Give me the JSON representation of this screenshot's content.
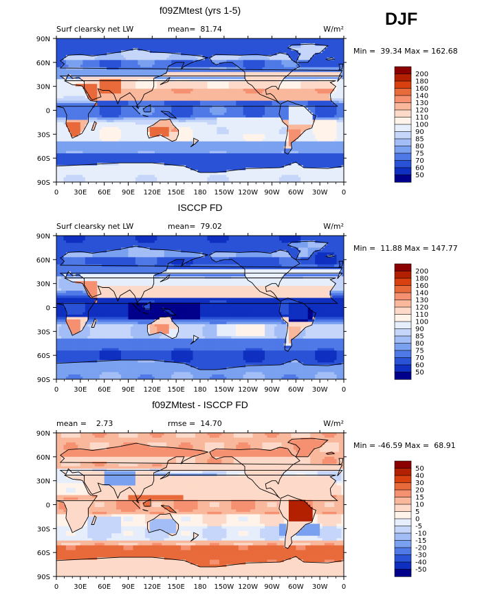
{
  "season": "DJF",
  "chart_data": [
    {
      "type": "heatmap",
      "title": "f09ZMtest (yrs 1-5)",
      "subtitle_left": "Surf clearsky net LW",
      "stat_text": "mean=  81.74",
      "units": "W/m²",
      "minmax_text": "Min =  39.34 Max = 162.68",
      "x_ticks": [
        "0",
        "30E",
        "60E",
        "90E",
        "120E",
        "150E",
        "180",
        "150W",
        "120W",
        "90W",
        "60W",
        "30W",
        "0"
      ],
      "y_ticks": [
        "90N",
        "60N",
        "30N",
        "0",
        "30S",
        "60S",
        "90S"
      ],
      "xlim": [
        0,
        360
      ],
      "ylim": [
        -90,
        90
      ],
      "colorbar_levels": [
        "200",
        "180",
        "160",
        "140",
        "130",
        "120",
        "110",
        "100",
        "90",
        "85",
        "80",
        "75",
        "70",
        "60",
        "50"
      ],
      "colorbar_colors": [
        "#8b0000",
        "#b22000",
        "#d84010",
        "#e86a3a",
        "#f59070",
        "#f9b89c",
        "#fcd9c8",
        "#fff3ea",
        "#e6eefc",
        "#c5d6fa",
        "#a3bdf6",
        "#7aa0f0",
        "#4f79e6",
        "#2a52d6",
        "#0e2fc0",
        "#00008b"
      ],
      "field_type": "base1"
    },
    {
      "type": "heatmap",
      "title": "ISCCP FD",
      "subtitle_left": "Surf clearsky net LW",
      "stat_text": "mean=  79.02",
      "units": "W/m²",
      "minmax_text": "Min =  11.88 Max = 147.77",
      "x_ticks": [
        "0",
        "30E",
        "60E",
        "90E",
        "120E",
        "150E",
        "180",
        "150W",
        "120W",
        "90W",
        "60W",
        "30W",
        "0"
      ],
      "y_ticks": [
        "90N",
        "60N",
        "30N",
        "0",
        "30S",
        "60S",
        "90S"
      ],
      "xlim": [
        0,
        360
      ],
      "ylim": [
        -90,
        90
      ],
      "colorbar_levels": [
        "200",
        "180",
        "160",
        "140",
        "130",
        "120",
        "110",
        "100",
        "90",
        "85",
        "80",
        "75",
        "70",
        "60",
        "50"
      ],
      "colorbar_colors": [
        "#8b0000",
        "#b22000",
        "#d84010",
        "#e86a3a",
        "#f59070",
        "#f9b89c",
        "#fcd9c8",
        "#fff3ea",
        "#e6eefc",
        "#c5d6fa",
        "#a3bdf6",
        "#7aa0f0",
        "#4f79e6",
        "#2a52d6",
        "#0e2fc0",
        "#00008b"
      ],
      "field_type": "base2"
    },
    {
      "type": "heatmap",
      "title": "f09ZMtest - ISCCP FD",
      "stat_text": "mean =    2.73",
      "stat_text2": "rmse =  14.70",
      "units": "W/m²",
      "minmax_text": "Min = -46.59 Max =  68.91",
      "x_ticks": [
        "0",
        "30E",
        "60E",
        "90E",
        "120E",
        "150E",
        "180",
        "150W",
        "120W",
        "90W",
        "60W",
        "30W",
        "0"
      ],
      "y_ticks": [
        "90N",
        "60N",
        "30N",
        "0",
        "30S",
        "60S",
        "90S"
      ],
      "xlim": [
        0,
        360
      ],
      "ylim": [
        -90,
        90
      ],
      "colorbar_levels": [
        "50",
        "40",
        "30",
        "20",
        "15",
        "10",
        "5",
        "0",
        "-5",
        "-10",
        "-15",
        "-20",
        "-30",
        "-40",
        "-50"
      ],
      "colorbar_colors": [
        "#8b0000",
        "#b22000",
        "#d84010",
        "#e86a3a",
        "#f59070",
        "#f9b89c",
        "#fcd9c8",
        "#fff3ea",
        "#e6eefc",
        "#c5d6fa",
        "#a3bdf6",
        "#7aa0f0",
        "#4f79e6",
        "#2a52d6",
        "#0e2fc0",
        "#00008b"
      ],
      "field_type": "diff"
    }
  ]
}
